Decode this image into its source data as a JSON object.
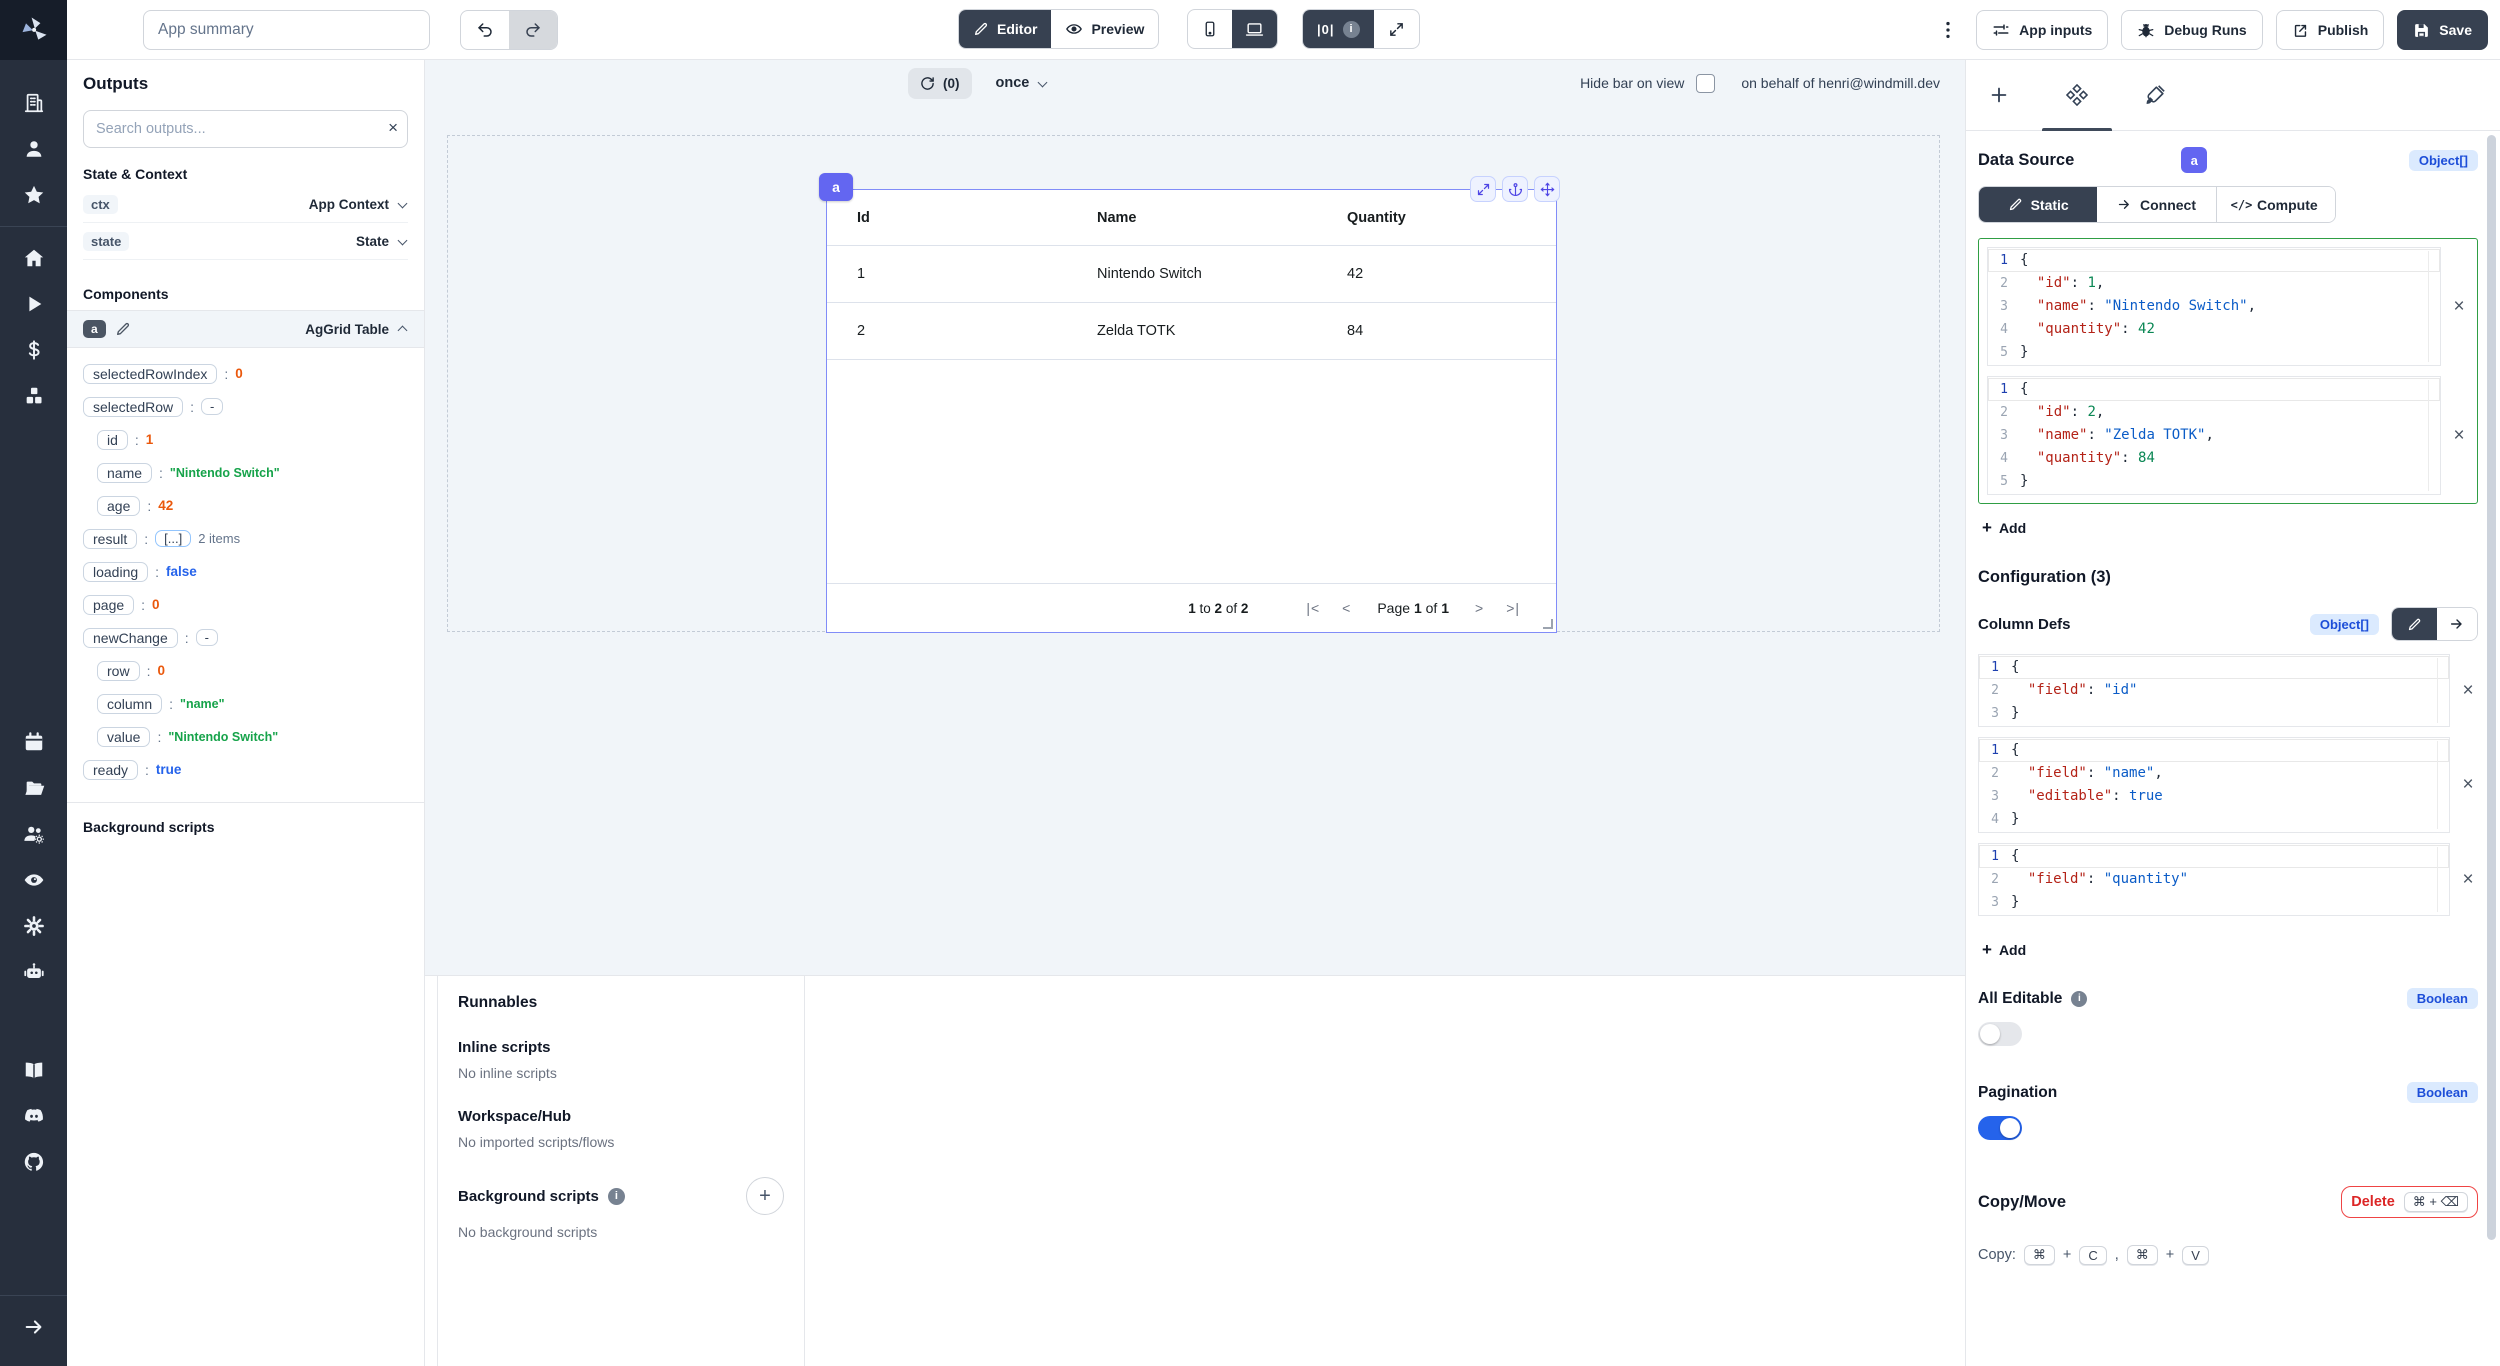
{
  "topbar": {
    "app_summary": "App summary",
    "editor": "Editor",
    "preview": "Preview",
    "zero_indicator": "|0|",
    "app_inputs": "App inputs",
    "debug_runs": "Debug Runs",
    "publish": "Publish",
    "save": "Save"
  },
  "sidebar": {
    "groups": [
      [
        "building-icon",
        "user-icon",
        "star-icon"
      ],
      [
        "home-icon",
        "play-icon",
        "dollar-icon",
        "cubes-icon"
      ],
      [
        "calendar-icon",
        "folder-icon",
        "users-gear-icon",
        "eye-icon",
        "gear-icon",
        "robot-icon"
      ],
      [
        "book-icon",
        "discord-icon",
        "github-icon"
      ],
      [
        "arrow-right-icon"
      ]
    ]
  },
  "outputs": {
    "title": "Outputs",
    "search_placeholder": "Search outputs...",
    "state_context_title": "State & Context",
    "context_rows": [
      {
        "key": "ctx",
        "value": "App Context"
      },
      {
        "key": "state",
        "value": "State"
      }
    ],
    "components_title": "Components",
    "component_id": "a",
    "component_type": "AgGrid Table",
    "props": [
      {
        "key": "selectedRowIndex",
        "type": "num",
        "value": "0",
        "indent": 0
      },
      {
        "key": "selectedRow",
        "type": "chip",
        "value": "-",
        "indent": 0
      },
      {
        "key": "id",
        "type": "num",
        "value": "1",
        "indent": 1
      },
      {
        "key": "name",
        "type": "str",
        "value": "\"Nintendo Switch\"",
        "indent": 1
      },
      {
        "key": "age",
        "type": "num",
        "value": "42",
        "indent": 1
      },
      {
        "key": "result",
        "type": "chip-blue",
        "value": "[...]",
        "suffix": "2 items",
        "indent": 0
      },
      {
        "key": "loading",
        "type": "bool",
        "value": "false",
        "indent": 0
      },
      {
        "key": "page",
        "type": "num",
        "value": "0",
        "indent": 0
      },
      {
        "key": "newChange",
        "type": "chip",
        "value": "-",
        "indent": 0
      },
      {
        "key": "row",
        "type": "num",
        "value": "0",
        "indent": 1
      },
      {
        "key": "column",
        "type": "str",
        "value": "\"name\"",
        "indent": 1
      },
      {
        "key": "value",
        "type": "str",
        "value": "\"Nintendo Switch\"",
        "indent": 1
      },
      {
        "key": "ready",
        "type": "bool",
        "value": "true",
        "indent": 0
      }
    ],
    "background_title": "Background scripts"
  },
  "canvas": {
    "refresh_count": "(0)",
    "refresh_mode": "once",
    "hide_bar_label": "Hide bar on view",
    "on_behalf_label": "on behalf of henri@windmill.dev",
    "component_tag": "a",
    "grid": {
      "headers": [
        "Id",
        "Name",
        "Quantity"
      ],
      "rows": [
        [
          "1",
          "Nintendo Switch",
          "42"
        ],
        [
          "2",
          "Zelda TOTK",
          "84"
        ]
      ],
      "range_label": "1 to 2 of 2",
      "page_label": "Page 1 of 1",
      "pager": {
        "first": "|<",
        "prev": "<",
        "next": ">",
        "last": ">|"
      }
    }
  },
  "runnables": {
    "title": "Runnables",
    "sections": [
      {
        "title": "Inline scripts",
        "empty": "No inline scripts",
        "info": false,
        "add": false
      },
      {
        "title": "Workspace/Hub",
        "empty": "No imported scripts/flows",
        "info": false,
        "add": false
      },
      {
        "title": "Background scripts",
        "empty": "No background scripts",
        "info": true,
        "add": true
      }
    ]
  },
  "settings": {
    "data_source": {
      "title": "Data Source",
      "component_tag": "a",
      "type_badge": "Object[]",
      "tabs": [
        {
          "label": "Static",
          "icon": "pencil-icon",
          "active": true
        },
        {
          "label": "Connect",
          "icon": "arrow-right-small-icon",
          "active": false
        },
        {
          "label": "Compute",
          "icon": "code-icon",
          "active": false
        }
      ],
      "items": [
        {
          "lines": [
            "{",
            "  \"id\": 1,",
            "  \"name\": \"Nintendo Switch\",",
            "  \"quantity\": 42",
            "}"
          ]
        },
        {
          "lines": [
            "{",
            "  \"id\": 2,",
            "  \"name\": \"Zelda TOTK\",",
            "  \"quantity\": 84",
            "}"
          ]
        }
      ],
      "add_label": "Add"
    },
    "configuration_title": "Configuration (3)",
    "column_defs": {
      "title": "Column Defs",
      "type_badge": "Object[]",
      "items": [
        {
          "lines": [
            "{",
            "  \"field\": \"id\"",
            "}"
          ]
        },
        {
          "lines": [
            "{",
            "  \"field\": \"name\",",
            "  \"editable\": true",
            "}"
          ]
        },
        {
          "lines": [
            "{",
            "  \"field\": \"quantity\"",
            "}"
          ]
        }
      ],
      "add_label": "Add"
    },
    "all_editable": {
      "label": "All Editable",
      "badge": "Boolean",
      "on": false
    },
    "pagination": {
      "label": "Pagination",
      "badge": "Boolean",
      "on": true
    },
    "copy_move": {
      "title": "Copy/Move",
      "delete_label": "Delete",
      "delete_kbd": "⌘ + ⌫",
      "copy_label": "Copy:",
      "cmd_key": "⌘",
      "plus": "+",
      "c_key": "C",
      "comma": ",",
      "v_key": "V"
    }
  },
  "colors": {
    "accent": "#6366f1",
    "toggle_on": "#2563eb",
    "editor_focus_border": "#2f9e44",
    "type_badge_bg": "#dbeafe",
    "type_badge_text": "#1d4ed8",
    "delete_red": "#dc2626"
  }
}
